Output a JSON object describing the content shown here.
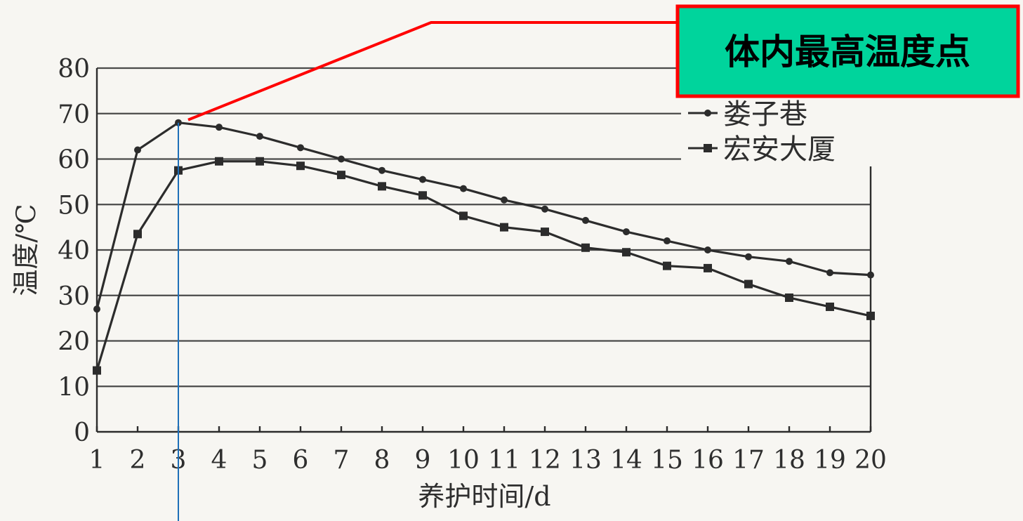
{
  "chart_data": {
    "type": "line",
    "title": "",
    "xlabel": "养护时间/d",
    "ylabel": "温度/℃",
    "x": [
      1,
      2,
      3,
      4,
      5,
      6,
      7,
      8,
      9,
      10,
      11,
      12,
      13,
      14,
      15,
      16,
      17,
      18,
      19,
      20
    ],
    "x_tick_labels": [
      "1",
      "2",
      "3",
      "4",
      "5",
      "6",
      "7",
      "8",
      "9",
      "10",
      "11",
      "12",
      "13",
      "14",
      "15",
      "16",
      "17",
      "18",
      "19",
      "20"
    ],
    "y_tick_labels": [
      "0",
      "10",
      "20",
      "30",
      "40",
      "50",
      "60",
      "70",
      "80"
    ],
    "xlim": [
      1,
      20
    ],
    "ylim": [
      0,
      80
    ],
    "grid": true,
    "legend_position": "top-right",
    "series": [
      {
        "name": "娄子巷",
        "marker": "circle",
        "values": [
          27,
          62,
          68,
          67,
          65,
          62.5,
          60,
          57.5,
          55.5,
          53.5,
          51,
          49,
          46.5,
          44,
          42,
          40,
          38.5,
          37.5,
          35,
          34.5
        ]
      },
      {
        "name": "宏安大厦",
        "marker": "square",
        "values": [
          13.5,
          43.5,
          57.5,
          59.5,
          59.5,
          58.5,
          56.5,
          54,
          52,
          47.5,
          45,
          44,
          40.5,
          39.5,
          36.5,
          36,
          32.5,
          29.5,
          27.5,
          25.5
        ]
      }
    ],
    "annotation": {
      "text": "体内最高温度点",
      "x": 3,
      "y": 68,
      "box_fill": "#00d49c",
      "border_color": "#ff0000",
      "leader_color": "#ff0000",
      "vertical_marker_color": "#1e6fb8"
    },
    "colors": {
      "background": "#f7f6f2",
      "ink": "#2c2c2c"
    }
  }
}
